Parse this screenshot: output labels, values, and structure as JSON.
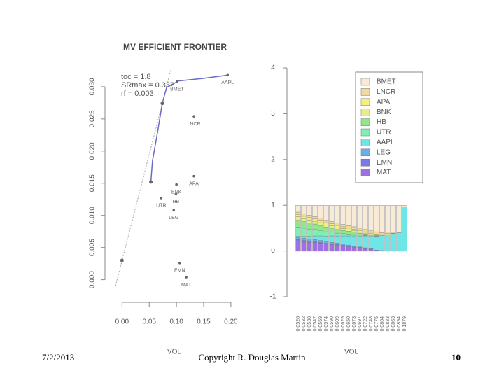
{
  "chart_data": [
    {
      "type": "scatter",
      "title": "MV EFFICIENT FRONTIER",
      "x_label": "VOL",
      "annotations": [
        "toc = 1.8",
        "SRmax = 0.332",
        "rf = 0.003"
      ],
      "xlim": [
        -0.012,
        0.213
      ],
      "ylim": [
        -0.002,
        0.0326
      ],
      "xticks": [
        {
          "value": 0,
          "label": "0.00"
        },
        0.05,
        {
          "value": 0.1,
          "label": "0.10"
        },
        0.15,
        {
          "value": 0.2,
          "label": "0.20"
        }
      ],
      "yticks": [
        {
          "value": 0,
          "label": "0.000"
        },
        0.005,
        {
          "value": 0.01,
          "label": "0.010"
        },
        0.015,
        {
          "value": 0.02,
          "label": "0.020"
        },
        0.025,
        {
          "value": 0.03,
          "label": "0.030"
        }
      ],
      "points": {
        "labels": [
          "AAPL",
          "BMET",
          "LNCR",
          "APA",
          "BNK",
          "HB",
          "UTR",
          "LEG",
          "EMN",
          "MAT"
        ],
        "x": [
          0.194,
          0.101,
          0.132,
          0.132,
          0.1,
          0.099,
          0.072,
          0.095,
          0.106,
          0.118
        ],
        "y": [
          0.0318,
          0.0308,
          0.0254,
          0.0161,
          0.0148,
          0.0133,
          0.0127,
          0.0108,
          0.0026,
          0.0004
        ],
        "color": "#666666"
      },
      "frontier": {
        "x": [
          0.053,
          0.056,
          0.065,
          0.074,
          0.082,
          0.104,
          0.149,
          0.194
        ],
        "y": [
          0.0152,
          0.0185,
          0.0228,
          0.0274,
          0.0299,
          0.0309,
          0.0313,
          0.0318
        ],
        "color": "#6a6acd"
      },
      "special_points": {
        "x": [
          0,
          0.053,
          0.074
        ],
        "y": [
          0.003,
          0.0152,
          0.0274
        ],
        "color": "#666666"
      }
    },
    {
      "type": "stacked_bar",
      "x_label": "VOL",
      "legend": "upper right",
      "ylim": [
        -1,
        4
      ],
      "yticks": [
        -1,
        0,
        1,
        2,
        3,
        4
      ],
      "categories": [
        "0.0526",
        "0.0532",
        "0.0538",
        "0.0547",
        "0.0559",
        "0.0574",
        "0.0590",
        "0.0609",
        "0.0629",
        "0.0650",
        "0.0673",
        "0.0697",
        "0.0722",
        "0.0748",
        "0.0775",
        "0.0804",
        "0.0833",
        "0.0863",
        "0.0894",
        "0.1879"
      ],
      "series": [
        {
          "name": "MAT",
          "color": "#a070e0",
          "values": [
            0.22,
            0.2,
            0.19,
            0.18,
            0.17,
            0.15,
            0.14,
            0.12,
            0.11,
            0.1,
            0.08,
            0.07,
            0.05,
            0.04,
            0.02,
            0.01,
            0,
            0,
            0,
            0
          ]
        },
        {
          "name": "EMN",
          "color": "#7a7ae8",
          "values": [
            0.03,
            0.03,
            0.03,
            0.03,
            0.02,
            0.02,
            0.02,
            0.02,
            0.02,
            0.01,
            0.01,
            0.01,
            0.01,
            0,
            0,
            0,
            0,
            0,
            0,
            0
          ]
        },
        {
          "name": "LEG",
          "color": "#6ab0e8",
          "values": [
            0.05,
            0.05,
            0.04,
            0.04,
            0.04,
            0.03,
            0.03,
            0.03,
            0.02,
            0.02,
            0.02,
            0.01,
            0.01,
            0.01,
            0,
            0,
            0,
            0,
            0,
            0
          ]
        },
        {
          "name": "AAPL",
          "color": "#6ee6e8",
          "values": [
            0.02,
            0.04,
            0.06,
            0.08,
            0.1,
            0.12,
            0.14,
            0.16,
            0.18,
            0.2,
            0.22,
            0.24,
            0.26,
            0.28,
            0.3,
            0.33,
            0.36,
            0.38,
            0.4,
            0.97
          ]
        },
        {
          "name": "UTR",
          "color": "#7ef0b0",
          "values": [
            0.2,
            0.18,
            0.16,
            0.14,
            0.12,
            0.1,
            0.08,
            0.06,
            0.05,
            0.04,
            0.03,
            0.02,
            0.01,
            0,
            0,
            0,
            0,
            0,
            0,
            0
          ]
        },
        {
          "name": "HB",
          "color": "#8fe88a",
          "values": [
            0.15,
            0.14,
            0.13,
            0.12,
            0.11,
            0.1,
            0.09,
            0.08,
            0.07,
            0.06,
            0.05,
            0.04,
            0.03,
            0.02,
            0.01,
            0,
            0,
            0,
            0,
            0
          ]
        },
        {
          "name": "BNK",
          "color": "#e6f08a",
          "values": [
            0.08,
            0.07,
            0.07,
            0.06,
            0.06,
            0.05,
            0.05,
            0.04,
            0.04,
            0.03,
            0.03,
            0.02,
            0.02,
            0.01,
            0.01,
            0,
            0,
            0,
            0,
            0
          ]
        },
        {
          "name": "APA",
          "color": "#f5f07a",
          "values": [
            0.05,
            0.05,
            0.05,
            0.05,
            0.05,
            0.05,
            0.05,
            0.05,
            0.04,
            0.04,
            0.04,
            0.04,
            0.03,
            0.03,
            0.03,
            0.02,
            0.02,
            0.01,
            0,
            0
          ]
        },
        {
          "name": "LNCR",
          "color": "#f2d9a0",
          "values": [
            0.05,
            0.05,
            0.05,
            0.05,
            0.05,
            0.05,
            0.05,
            0.05,
            0.05,
            0.05,
            0.05,
            0.05,
            0.05,
            0.05,
            0.05,
            0.04,
            0.03,
            0.02,
            0.01,
            0
          ]
        },
        {
          "name": "BMET",
          "color": "#f7ead6",
          "values": [
            0.15,
            0.19,
            0.22,
            0.25,
            0.28,
            0.33,
            0.35,
            0.39,
            0.42,
            0.45,
            0.47,
            0.5,
            0.53,
            0.56,
            0.58,
            0.6,
            0.59,
            0.59,
            0.59,
            0.03
          ]
        }
      ]
    }
  ],
  "footer": {
    "date": "7/2/2013",
    "copyright": "Copyright R. Douglas Martin",
    "page": "10"
  }
}
